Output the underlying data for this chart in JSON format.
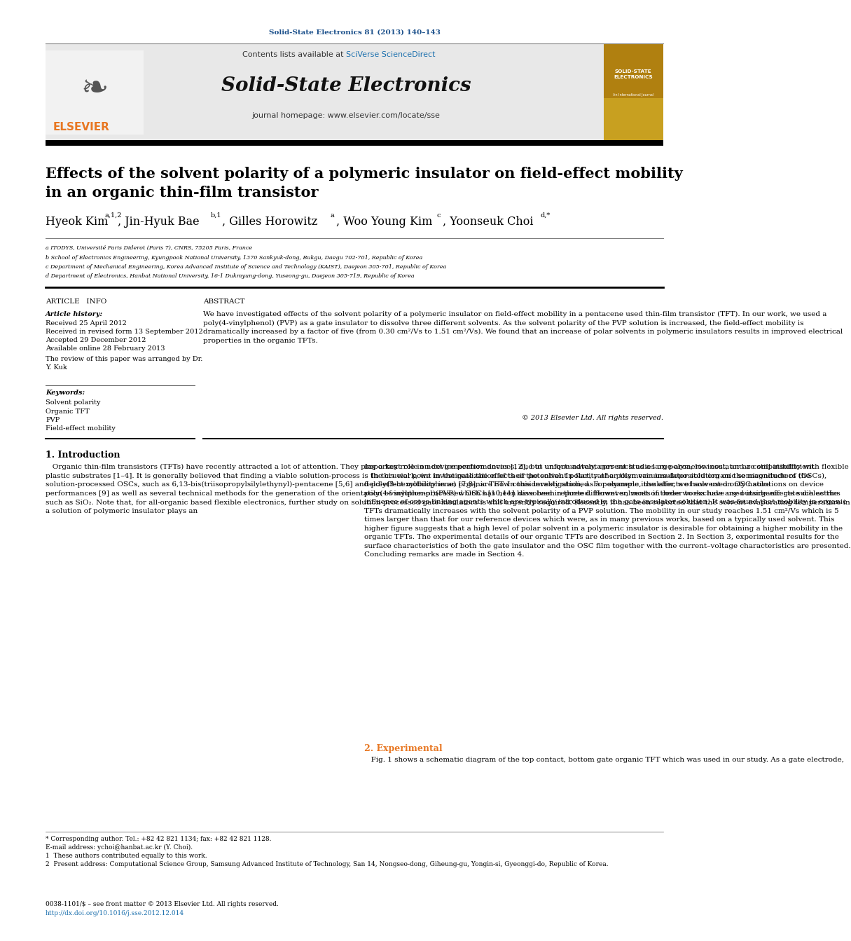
{
  "doi_text": "Solid-State Electronics 81 (2013) 140–143",
  "doi_color": "#1a4f8a",
  "sciverse_color": "#1a6fad",
  "journal_name": "Solid-State Electronics",
  "journal_homepage": "journal homepage: www.elsevier.com/locate/sse",
  "header_bg": "#e8e8e8",
  "title_line1": "Effects of the solvent polarity of a polymeric insulator on field-effect mobility",
  "title_line2": "in an organic thin-film transistor",
  "affil_a": "a ITODYS, Université Paris Diderot (Paris 7), CNRS, 75205 Paris, France",
  "affil_b": "b School of Electronics Engineering, Kyungpook National University, 1370 Sankyuk-dong, Bukgu, Daegu 702-701, Republic of Korea",
  "affil_c": "c Department of Mechanical Engineering, Korea Advanced Institute of Science and Technology (KAIST), Daejeon 305-701, Republic of Korea",
  "affil_d": "d Department of Electronics, Hanbat National University, 16-1 Dukmyung-dong, Yuseong-gu, Daejeon 305-719, Republic of Korea",
  "received": "Received 25 April 2012",
  "received_revised": "Received in revised form 13 September 2012",
  "accepted": "Accepted 29 December 2012",
  "available": "Available online 28 February 2013",
  "review_note": "The review of this paper was arranged by Dr.\nY. Kuk",
  "keywords": [
    "Solvent polarity",
    "Organic TFT",
    "PVP",
    "Field-effect mobility"
  ],
  "abstract_text": "We have investigated effects of the solvent polarity of a polymeric insulator on field-effect mobility in a pentacene used thin-film transistor (TFT). In our work, we used a poly(4-vinylphenol) (PVP) as a gate insulator to dissolve three different solvents. As the solvent polarity of the PVP solution is increased, the field-effect mobility is dramatically increased by a factor of five (from 0.30 cm²/Vs to 1.51 cm²/Vs). We found that an increase of polar solvents in polymeric insulators results in improved electrical properties in the organic TFTs.",
  "copyright": "© 2013 Elsevier Ltd. All rights reserved.",
  "intro_left": "   Organic thin-film transistors (TFTs) have recently attracted a lot of attention. They play a key role in next generation devices, due to unique advantages such as a large-area, low-cost, and a compatibility with flexible plastic substrates [1–4]. It is generally believed that finding a viable solution-process is the crucial point in the realization of their potential. In fact, rather than vacuum-deposited organic semiconductors (OSCs), solution-processed OSCs, such as 6,13-bis(triisopropylsilylethynyl)-pentacene [5,6] and poly(3-hexylthiophene) [7,8], are now considerably studied. For example, the effects of solvent on OSC solutions on device performances [9] as well as several technical methods for the generation of the orientation of solution-processed OSCs [10,11] have been reported. However, most of these works have used inorganic gate dielectrics such as SiO₂. Note that, for all-organic based flexible electronics, further study on solution-processed gate insulators is still urgently required. Recently, it has been reported that the solvent evaporating temperature in a solution of polymeric insulator plays an",
  "intro_right": "important role on device performances [12], but unfortunately, current studies on polymeric insulator are still insufficient.\n   In this work, we investigate the effects of the solvent polarity of a polymeric insulator solution on the magnitude of the field-effect mobility in an organic TFT. In this investigation, as a polymeric insulator, we have used only native poly(4-vinylphenol)(PVP) which has been dissolved in three different solvents in order to exclude any outside effects such as the influence of cross-linking agents which are typically introduced in the gate insulator solution. It was found that mobility in organic TFTs dramatically increases with the solvent polarity of a PVP solution. The mobility in our study reaches 1.51 cm²/Vs which is 5 times larger than that for our reference devices which were, as in many previous works, based on a typically used solvent. This higher figure suggests that a high level of polar solvent in a polymeric insulator is desirable for obtaining a higher mobility in the organic TFTs. The experimental details of our organic TFTs are described in Section 2. In Section 3, experimental results for the surface characteristics of both the gate insulator and the OSC film together with the current–voltage characteristics are presented. Concluding remarks are made in Section 4.",
  "section2_header": "2. Experimental",
  "section2_text": "   Fig. 1 shows a schematic diagram of the top contact, bottom gate organic TFT which was used in our study. As a gate electrode,",
  "footer_star": "* Corresponding author. Tel.: +82 42 821 1134; fax: +82 42 821 1128.",
  "footer_email": "E-mail address: ychoi@hanbat.ac.kr (Y. Choi).",
  "footer_1": "1  These authors contributed equally to this work.",
  "footer_2": "2  Present address: Computational Science Group, Samsung Advanced Institute of Technology, San 14, Nongseo-dong, Giheung-gu, Yongin-si, Gyeonggi-do, Republic of Korea.",
  "footer_issn": "0038-1101/$ – see front matter © 2013 Elsevier Ltd. All rights reserved.",
  "footer_doi": "http://dx.doi.org/10.1016/j.sse.2012.12.014",
  "bg_color": "#ffffff",
  "elsevier_orange": "#e87722",
  "link_blue": "#1a6fad"
}
